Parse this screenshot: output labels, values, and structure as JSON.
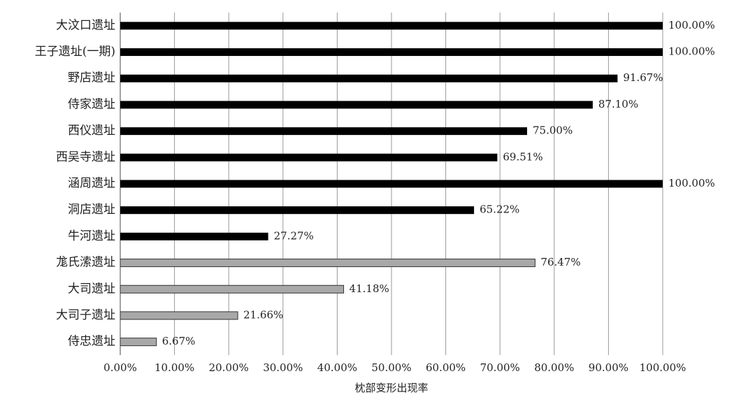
{
  "chart_data": {
    "type": "barh",
    "x_label": "枕部变形出现率",
    "categories": [
      "大汶口遗址",
      "王子遗址(一期)",
      "野店遗址",
      "侍家遗址",
      "西仪遗址",
      "西吴寺遗址",
      "涵周遗址",
      "洞店遗址",
      "牛河遗址",
      "尨氏溹遗址",
      "大司遗址",
      "大司子遗址",
      "侍忠遗址"
    ],
    "values": [
      100,
      100,
      91.67,
      87.1,
      75,
      69.51,
      100,
      65.22,
      27.27,
      76.47,
      41.18,
      21.66,
      6.67
    ],
    "value_labels": [
      "100.00%",
      "100.00%",
      "91.67%",
      "87.10%",
      "75.00%",
      "69.51%",
      "100.00%",
      "65.22%",
      "27.27%",
      "76.47%",
      "41.18%",
      "21.66%",
      "6.67%"
    ],
    "colors": [
      "#000000",
      "#000000",
      "#000000",
      "#000000",
      "#000000",
      "#000000",
      "#000000",
      "#000000",
      "#000000",
      "#a8a8a8",
      "#a8a8a8",
      "#a8a8a8",
      "#a8a8a8"
    ],
    "xlim": [
      0,
      100
    ],
    "xticks": [
      {
        "value": 0,
        "label": "0.00%"
      },
      {
        "value": 10,
        "label": "10.00%"
      },
      {
        "value": 20,
        "label": "20.00%"
      },
      {
        "value": 30,
        "label": "30.00%"
      },
      {
        "value": 40,
        "label": "40.00%"
      },
      {
        "value": 50,
        "label": "50.00%"
      },
      {
        "value": 60,
        "label": "60.00%"
      },
      {
        "value": 70,
        "label": "70.00%"
      },
      {
        "value": 80,
        "label": "80.00%"
      },
      {
        "value": 90,
        "label": "90.00%"
      },
      {
        "value": 100,
        "label": "100.00%"
      }
    ],
    "grid": true
  }
}
